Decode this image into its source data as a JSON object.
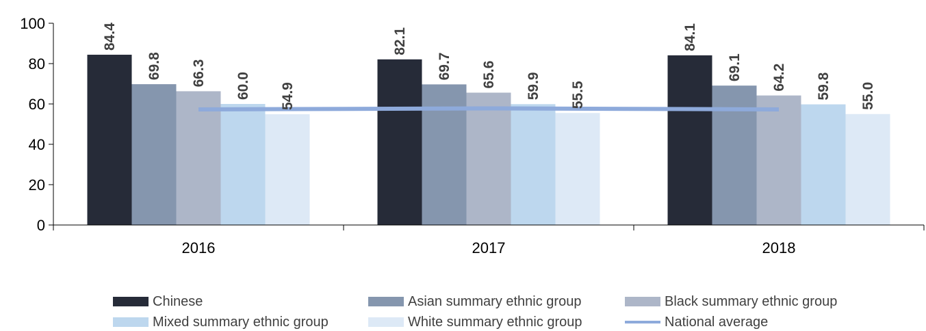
{
  "chart_data": {
    "type": "bar",
    "categories": [
      "2016",
      "2017",
      "2018"
    ],
    "series": [
      {
        "name": "Chinese",
        "values": [
          84.4,
          82.1,
          84.1
        ],
        "color": "#262b38",
        "label_text": [
          "84.4",
          "82.1",
          "84.1"
        ]
      },
      {
        "name": "Asian summary ethnic group",
        "values": [
          69.8,
          69.7,
          69.1
        ],
        "color": "#8596ae",
        "label_text": [
          "69.8",
          "69.7",
          "69.1"
        ]
      },
      {
        "name": "Black summary ethnic group",
        "values": [
          66.3,
          65.6,
          64.2
        ],
        "color": "#adb6c8",
        "label_text": [
          "66.3",
          "65.6",
          "64.2"
        ]
      },
      {
        "name": "Mixed summary ethnic group",
        "values": [
          60.0,
          59.9,
          59.8
        ],
        "color": "#bdd7ee",
        "label_text": [
          "60.0",
          "59.9",
          "59.8"
        ]
      },
      {
        "name": "White summary ethnic group",
        "values": [
          54.9,
          55.5,
          55.0
        ],
        "color": "#dde9f6",
        "label_text": [
          "54.9",
          "55.5",
          "55.0"
        ]
      }
    ],
    "line_series": {
      "name": "National average",
      "values": [
        57.3,
        57.8,
        57.3
      ],
      "color": "#8eaadb"
    },
    "ylim": [
      0,
      100
    ],
    "yticks": [
      0,
      20,
      40,
      60,
      80,
      100
    ],
    "ytick_labels": [
      "0",
      "20",
      "40",
      "60",
      "80",
      "100"
    ],
    "grid": false,
    "legend_position": "bottom"
  }
}
